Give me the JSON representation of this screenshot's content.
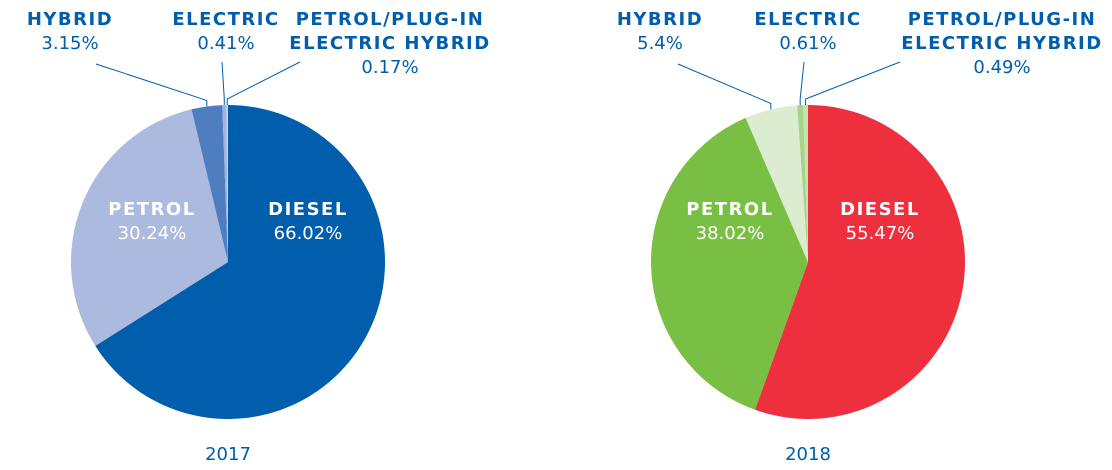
{
  "chart_data": [
    {
      "type": "pie",
      "title": "2017",
      "categories": [
        "DIESEL",
        "PETROL",
        "HYBRID",
        "ELECTRIC",
        "PETROL/PLUG-IN ELECTRIC HYBRID"
      ],
      "values": [
        66.02,
        30.24,
        3.15,
        0.41,
        0.17
      ],
      "value_labels": [
        "66.02%",
        "30.24%",
        "3.15%",
        "0.41%",
        "0.17%"
      ],
      "colors": [
        "#005eac",
        "#adbadf",
        "#4f7ec0",
        "#9fb3dc",
        "#c9d3ea"
      ]
    },
    {
      "type": "pie",
      "title": "2018",
      "categories": [
        "DIESEL",
        "PETROL",
        "HYBRID",
        "ELECTRIC",
        "PETROL/PLUG-IN ELECTRIC HYBRID"
      ],
      "values": [
        55.47,
        38.02,
        5.4,
        0.61,
        0.49
      ],
      "value_labels": [
        "55.47%",
        "38.02%",
        "5.4%",
        "0.61%",
        "0.49%"
      ],
      "colors": [
        "#ee2f3e",
        "#79bf43",
        "#dcecd0",
        "#a8d48a",
        "#c5e2b0"
      ]
    }
  ]
}
